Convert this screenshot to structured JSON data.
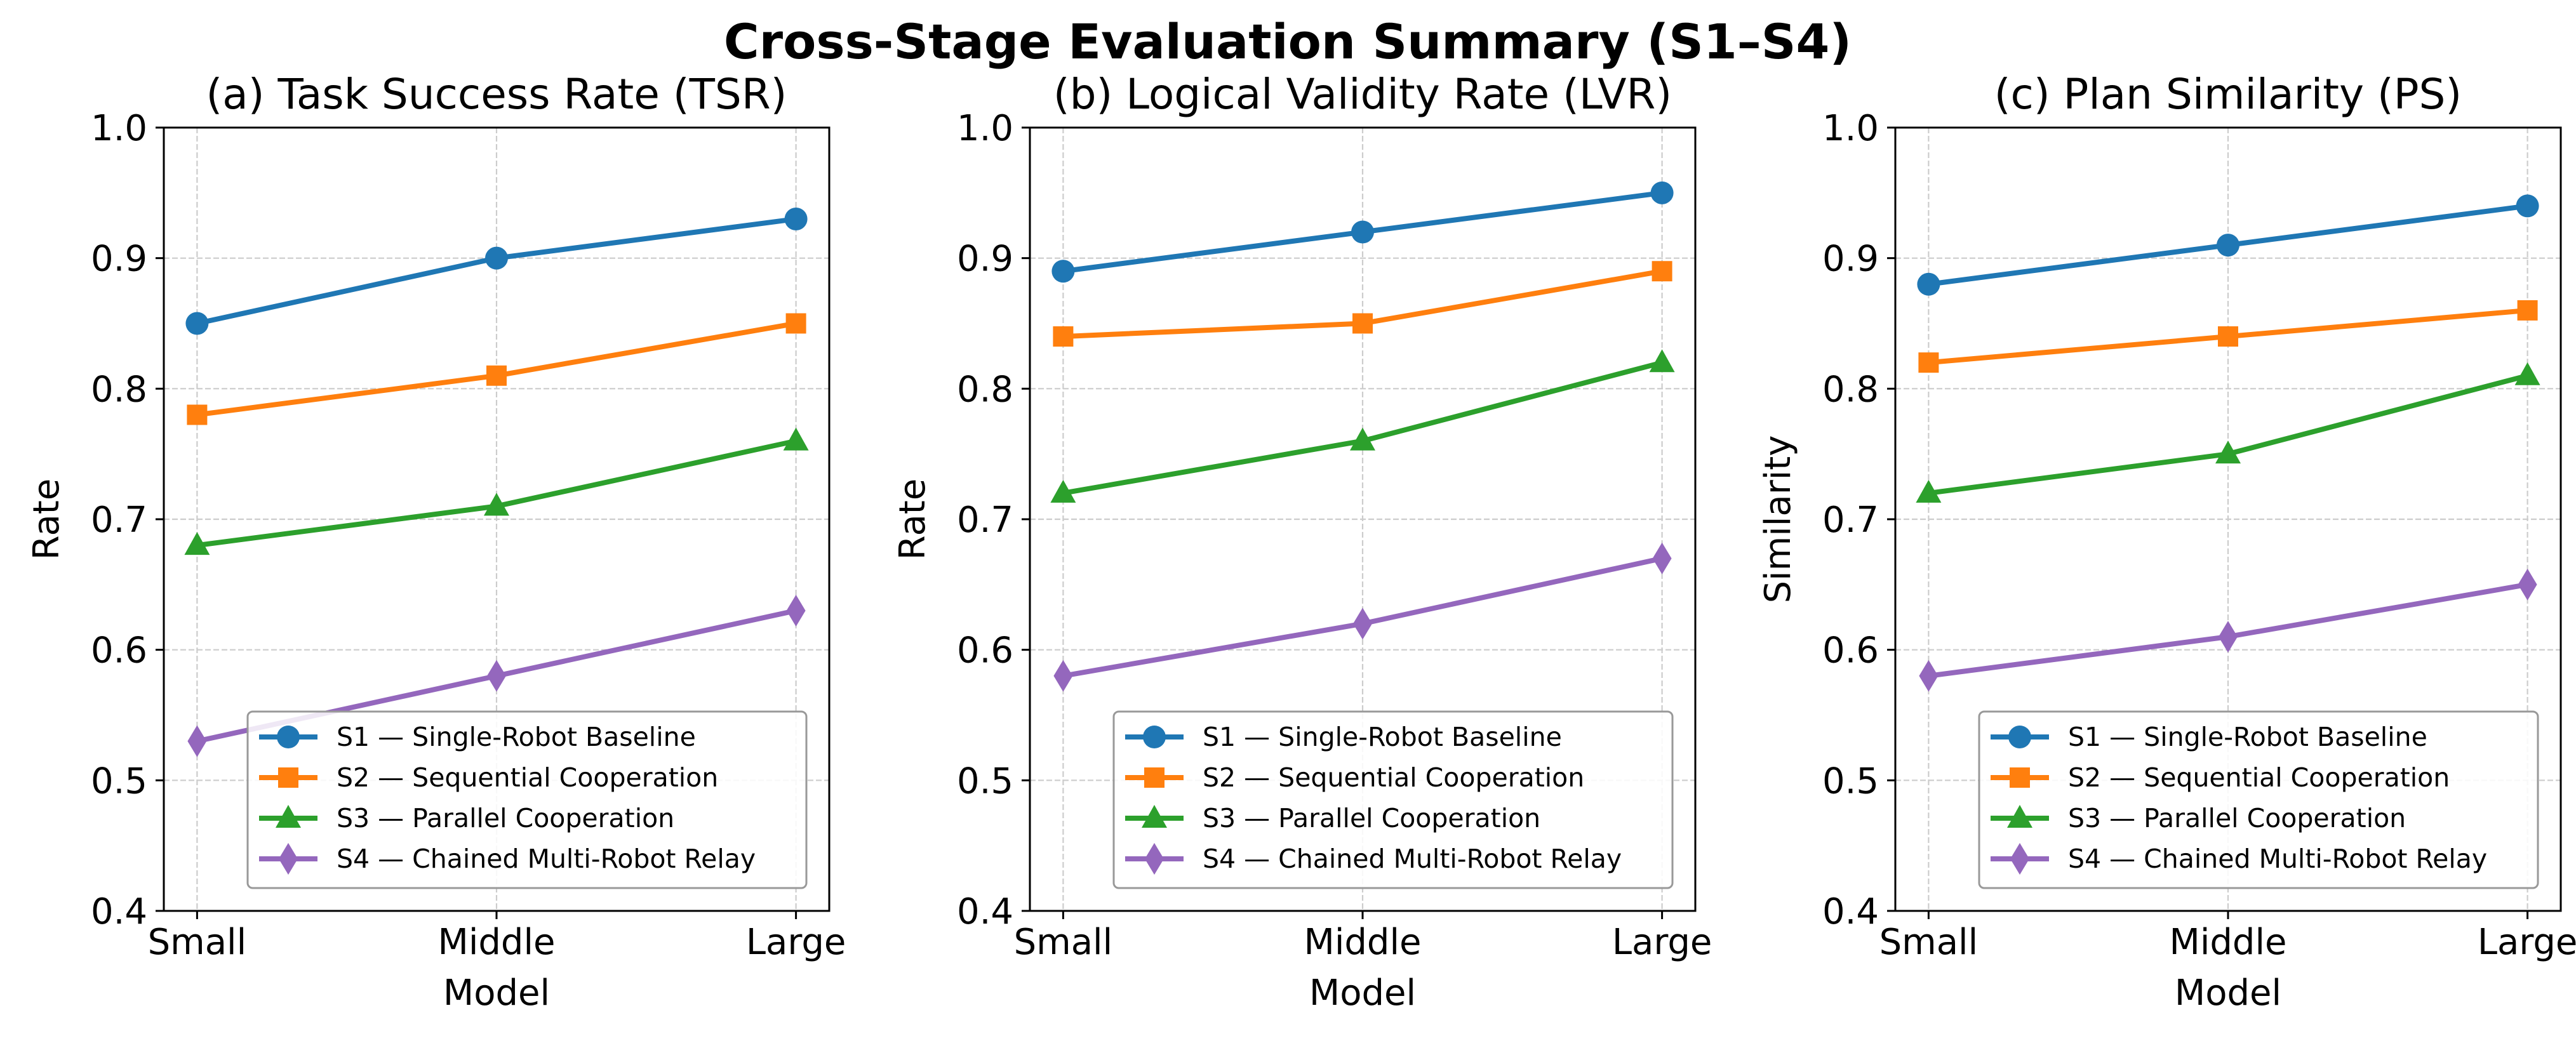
{
  "figure": {
    "title": "Cross-Stage Evaluation Summary (S1–S4)"
  },
  "colors": {
    "S1": "#1f77b4",
    "S2": "#ff7f0e",
    "S3": "#2ca02c",
    "S4": "#9467bd",
    "grid": "#cccccc"
  },
  "chart_data": [
    {
      "type": "line",
      "title": "(a) Task Success Rate (TSR)",
      "xlabel": "Model",
      "ylabel": "Rate",
      "categories": [
        "Small",
        "Middle",
        "Large"
      ],
      "ylim": [
        0.4,
        1.0
      ],
      "yticks": [
        "0.4",
        "0.5",
        "0.6",
        "0.7",
        "0.8",
        "0.9",
        "1.0"
      ],
      "grid": true,
      "legend_position": "lower-right",
      "series": [
        {
          "name": "S1 — Single-Robot Baseline",
          "values": [
            0.85,
            0.9,
            0.93
          ],
          "marker": "circle",
          "color_key": "S1"
        },
        {
          "name": "S2 — Sequential Cooperation",
          "values": [
            0.78,
            0.81,
            0.85
          ],
          "marker": "square",
          "color_key": "S2"
        },
        {
          "name": "S3 — Parallel Cooperation",
          "values": [
            0.68,
            0.71,
            0.76
          ],
          "marker": "triangle",
          "color_key": "S3"
        },
        {
          "name": "S4 — Chained Multi-Robot Relay",
          "values": [
            0.53,
            0.58,
            0.63
          ],
          "marker": "diamond",
          "color_key": "S4"
        }
      ]
    },
    {
      "type": "line",
      "title": "(b) Logical Validity Rate (LVR)",
      "xlabel": "Model",
      "ylabel": "Rate",
      "categories": [
        "Small",
        "Middle",
        "Large"
      ],
      "ylim": [
        0.4,
        1.0
      ],
      "yticks": [
        "0.4",
        "0.5",
        "0.6",
        "0.7",
        "0.8",
        "0.9",
        "1.0"
      ],
      "grid": true,
      "legend_position": "lower-right",
      "series": [
        {
          "name": "S1 — Single-Robot Baseline",
          "values": [
            0.89,
            0.92,
            0.95
          ],
          "marker": "circle",
          "color_key": "S1"
        },
        {
          "name": "S2 — Sequential Cooperation",
          "values": [
            0.84,
            0.85,
            0.89
          ],
          "marker": "square",
          "color_key": "S2"
        },
        {
          "name": "S3 — Parallel Cooperation",
          "values": [
            0.72,
            0.76,
            0.82
          ],
          "marker": "triangle",
          "color_key": "S3"
        },
        {
          "name": "S4 — Chained Multi-Robot Relay",
          "values": [
            0.58,
            0.62,
            0.67
          ],
          "marker": "diamond",
          "color_key": "S4"
        }
      ]
    },
    {
      "type": "line",
      "title": "(c) Plan Similarity (PS)",
      "xlabel": "Model",
      "ylabel": "Similarity",
      "categories": [
        "Small",
        "Middle",
        "Large"
      ],
      "ylim": [
        0.4,
        1.0
      ],
      "yticks": [
        "0.4",
        "0.5",
        "0.6",
        "0.7",
        "0.8",
        "0.9",
        "1.0"
      ],
      "grid": true,
      "legend_position": "lower-right",
      "series": [
        {
          "name": "S1 — Single-Robot Baseline",
          "values": [
            0.88,
            0.91,
            0.94
          ],
          "marker": "circle",
          "color_key": "S1"
        },
        {
          "name": "S2 — Sequential Cooperation",
          "values": [
            0.82,
            0.84,
            0.86
          ],
          "marker": "square",
          "color_key": "S2"
        },
        {
          "name": "S3 — Parallel Cooperation",
          "values": [
            0.72,
            0.75,
            0.81
          ],
          "marker": "triangle",
          "color_key": "S3"
        },
        {
          "name": "S4 — Chained Multi-Robot Relay",
          "values": [
            0.58,
            0.61,
            0.65
          ],
          "marker": "diamond",
          "color_key": "S4"
        }
      ]
    }
  ]
}
